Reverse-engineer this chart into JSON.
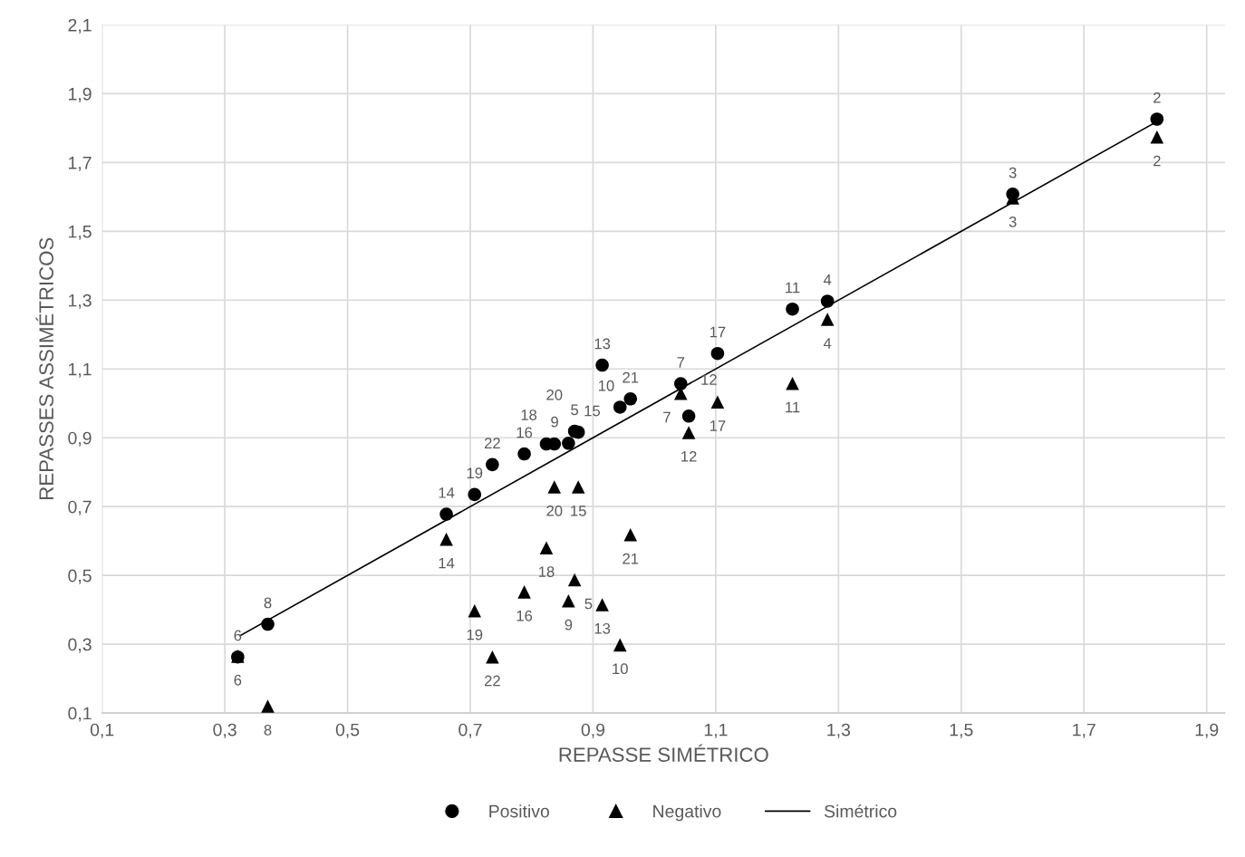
{
  "chart_data": {
    "type": "scatter",
    "xlabel": "REPASSE SIMÉTRICO",
    "ylabel": "REPASSES ASSIMÉTRICOS",
    "xlim": [
      0.1,
      1.93
    ],
    "xticks": [
      {
        "value": 0.1,
        "label": "0,1"
      },
      {
        "value": 0.3,
        "label": "0,3"
      },
      {
        "value": 0.5,
        "label": "0,5"
      },
      {
        "value": 0.7,
        "label": "0,7"
      },
      {
        "value": 0.9,
        "label": "0,9"
      },
      {
        "value": 1.1,
        "label": "1,1"
      },
      {
        "value": 1.3,
        "label": "1,3"
      },
      {
        "value": 1.5,
        "label": "1,5"
      },
      {
        "value": 1.7,
        "label": "1,7"
      },
      {
        "value": 1.9,
        "label": "1,9"
      }
    ],
    "ylim": [
      0.1,
      2.1
    ],
    "yticks": [
      {
        "value": 0.1,
        "label": "0,1"
      },
      {
        "value": 0.3,
        "label": "0,3"
      },
      {
        "value": 0.5,
        "label": "0,5"
      },
      {
        "value": 0.7,
        "label": "0,7"
      },
      {
        "value": 0.9,
        "label": "0,9"
      },
      {
        "value": 1.1,
        "label": "1,1"
      },
      {
        "value": 1.3,
        "label": "1,3"
      },
      {
        "value": 1.5,
        "label": "1,5"
      },
      {
        "value": 1.7,
        "label": "1,7"
      },
      {
        "value": 1.9,
        "label": "1,9"
      },
      {
        "value": 2.1,
        "label": "2,1"
      }
    ],
    "grid": true,
    "legend": "bottom",
    "x": [
      1.819,
      1.584,
      1.282,
      0.87,
      0.321,
      1.043,
      0.37,
      0.86,
      0.944,
      1.225,
      1.056,
      0.915,
      0.661,
      0.876,
      0.788,
      1.103,
      0.824,
      0.707,
      0.837,
      0.961,
      0.736
    ],
    "series": [
      {
        "name": "Positivo",
        "color": "#000000",
        "marker": "circle",
        "values": [
          1.826,
          1.608,
          1.297,
          0.919,
          0.263,
          1.057,
          0.358,
          0.884,
          0.989,
          1.274,
          0.963,
          1.111,
          0.678,
          0.916,
          0.853,
          1.145,
          0.882,
          0.735,
          0.882,
          1.013,
          0.822
        ]
      },
      {
        "name": "Negativo",
        "color": "#000000",
        "marker": "triangle",
        "values": [
          1.774,
          1.597,
          1.244,
          0.487,
          0.265,
          1.029,
          0.12,
          0.426,
          0.298,
          1.058,
          0.915,
          0.415,
          0.605,
          0.757,
          0.452,
          1.004,
          0.58,
          0.397,
          0.757,
          0.618,
          0.263
        ]
      },
      {
        "name": "Simétrico",
        "color": "#000000",
        "type": "line",
        "marker": "none",
        "x": [
          0.325,
          1.822
        ],
        "values": [
          0.325,
          1.822
        ]
      }
    ],
    "annotations": [
      {
        "text": "2",
        "x": 1.819,
        "y": 1.826
      },
      {
        "text": "3",
        "x": 1.584,
        "y": 1.608
      },
      {
        "text": "4",
        "x": 1.282,
        "y": 1.297
      },
      {
        "text": "5",
        "x": 0.87,
        "y": 0.919
      },
      {
        "text": "6",
        "x": 0.321,
        "y": 0.263
      },
      {
        "text": "7",
        "x": 1.043,
        "y": 1.057
      },
      {
        "text": "8",
        "x": 0.37,
        "y": 0.358
      },
      {
        "text": "9",
        "x": 0.86,
        "y": 0.884
      },
      {
        "text": "10",
        "x": 0.944,
        "y": 0.989
      },
      {
        "text": "11",
        "x": 1.225,
        "y": 1.274
      },
      {
        "text": "12",
        "x": 1.056,
        "y": 0.963
      },
      {
        "text": "13",
        "x": 0.915,
        "y": 1.111
      },
      {
        "text": "14",
        "x": 0.661,
        "y": 0.678
      },
      {
        "text": "15",
        "x": 0.876,
        "y": 0.916
      },
      {
        "text": "16",
        "x": 0.788,
        "y": 0.853
      },
      {
        "text": "17",
        "x": 1.103,
        "y": 1.145
      },
      {
        "text": "18",
        "x": 0.824,
        "y": 0.882
      },
      {
        "text": "19",
        "x": 0.707,
        "y": 0.735
      },
      {
        "text": "20",
        "x": 0.837,
        "y": 0.882
      },
      {
        "text": "21",
        "x": 0.961,
        "y": 1.013
      },
      {
        "text": "22",
        "x": 0.736,
        "y": 0.822
      },
      {
        "text": "2",
        "x": 1.819,
        "y": 1.774
      },
      {
        "text": "3",
        "x": 1.584,
        "y": 1.597
      },
      {
        "text": "4",
        "x": 1.282,
        "y": 1.244
      },
      {
        "text": "5",
        "x": 0.87,
        "y": 0.487
      },
      {
        "text": "6",
        "x": 0.321,
        "y": 0.265
      },
      {
        "text": "7",
        "x": 1.043,
        "y": 1.029
      },
      {
        "text": "8",
        "x": 0.37,
        "y": 0.12
      },
      {
        "text": "9",
        "x": 0.86,
        "y": 0.426
      },
      {
        "text": "10",
        "x": 0.944,
        "y": 0.298
      },
      {
        "text": "11",
        "x": 1.225,
        "y": 1.058
      },
      {
        "text": "12",
        "x": 1.056,
        "y": 0.915
      },
      {
        "text": "13",
        "x": 0.915,
        "y": 0.415
      },
      {
        "text": "14",
        "x": 0.661,
        "y": 0.605
      },
      {
        "text": "15",
        "x": 0.876,
        "y": 0.757
      },
      {
        "text": "16",
        "x": 0.788,
        "y": 0.452
      },
      {
        "text": "17",
        "x": 1.103,
        "y": 1.004
      },
      {
        "text": "18",
        "x": 0.824,
        "y": 0.58
      },
      {
        "text": "19",
        "x": 0.707,
        "y": 0.397
      },
      {
        "text": "20",
        "x": 0.837,
        "y": 0.757
      },
      {
        "text": "21",
        "x": 0.961,
        "y": 0.618
      },
      {
        "text": "22",
        "x": 0.736,
        "y": 0.263
      }
    ]
  }
}
